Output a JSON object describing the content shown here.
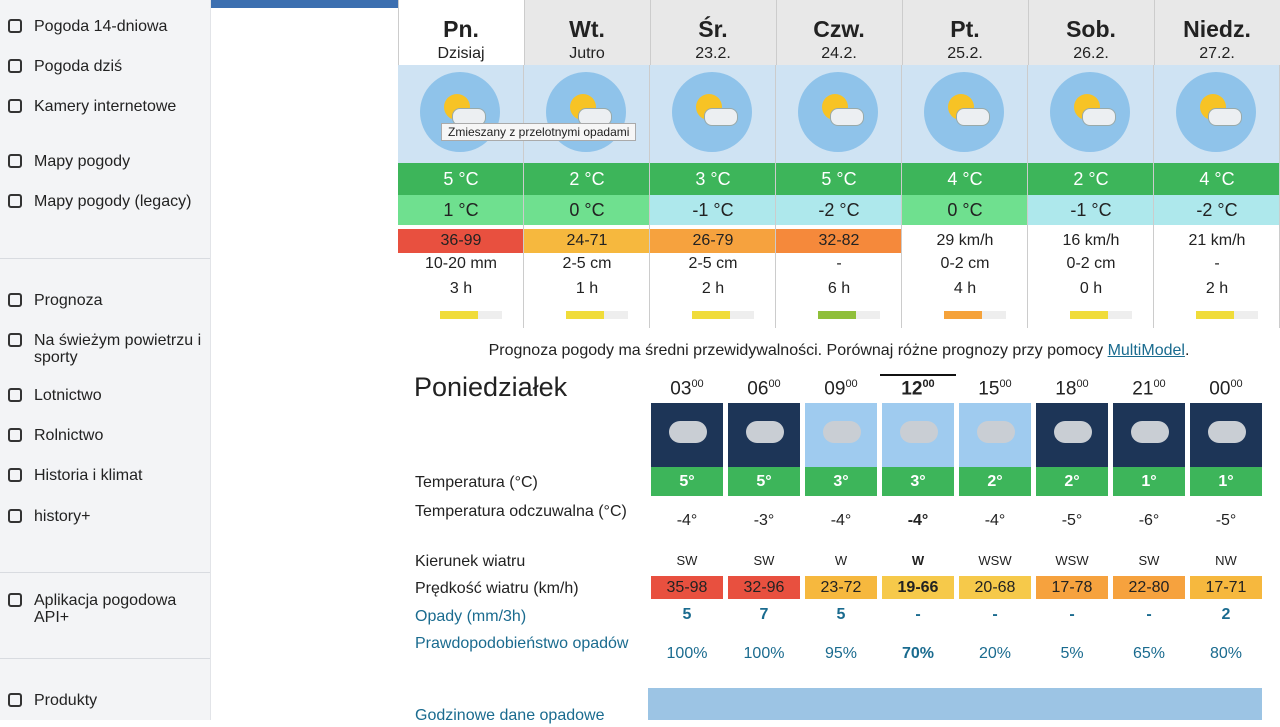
{
  "sidebar": {
    "items": [
      "Pogoda 14-dniowa",
      "Pogoda dziś",
      "Kamery internetowe",
      "Mapy pogody",
      "Mapy pogody (legacy)",
      "Prognoza",
      "Na świeżym powietrzu i sporty",
      "Lotnictwo",
      "Rolnictwo",
      "Historia i klimat",
      "history+",
      "Aplikacja pogodowa API+",
      "Produkty"
    ]
  },
  "days": [
    {
      "name": "Pn.",
      "date": "Dzisiaj",
      "tmax": "5 °C",
      "tmin": "1 °C",
      "tmin_color": "#6fe08f",
      "wind": "36-99",
      "wind_color": "#e8503f",
      "precip": "10-20 mm",
      "sun": "3 h",
      "pred_color": "#f0dc3a"
    },
    {
      "name": "Wt.",
      "date": "Jutro",
      "tmax": "2 °C",
      "tmin": "0 °C",
      "tmin_color": "#6fe08f",
      "wind": "24-71",
      "wind_color": "#f6b83e",
      "precip": "2-5 cm",
      "sun": "1 h",
      "pred_color": "#f0dc3a"
    },
    {
      "name": "Śr.",
      "date": "23.2.",
      "tmax": "3 °C",
      "tmin": "-1 °C",
      "tmin_color": "#aee8ec",
      "wind": "26-79",
      "wind_color": "#f6a23e",
      "precip": "2-5 cm",
      "sun": "2 h",
      "pred_color": "#f0dc3a"
    },
    {
      "name": "Czw.",
      "date": "24.2.",
      "tmax": "5 °C",
      "tmin": "-2 °C",
      "tmin_color": "#aee8ec",
      "wind": "32-82",
      "wind_color": "#f5893b",
      "precip": "-",
      "sun": "6 h",
      "pred_color": "#8fbf3a"
    },
    {
      "name": "Pt.",
      "date": "25.2.",
      "tmax": "4 °C",
      "tmin": "0 °C",
      "tmin_color": "#6fe08f",
      "wind": "29 km/h",
      "wind_color": "#ffffff",
      "precip": "0-2 cm",
      "sun": "4 h",
      "pred_color": "#f5a23a"
    },
    {
      "name": "Sob.",
      "date": "26.2.",
      "tmax": "2 °C",
      "tmin": "-1 °C",
      "tmin_color": "#aee8ec",
      "wind": "16 km/h",
      "wind_color": "#ffffff",
      "precip": "0-2 cm",
      "sun": "0 h",
      "pred_color": "#f0dc3a"
    },
    {
      "name": "Niedz.",
      "date": "27.2.",
      "tmax": "4 °C",
      "tmin": "-2 °C",
      "tmin_color": "#aee8ec",
      "wind": "21 km/h",
      "wind_color": "#ffffff",
      "precip": "-",
      "sun": "2 h",
      "pred_color": "#f0dc3a"
    }
  ],
  "tooltip": "Zmieszany z przelotnymi opadami",
  "note": {
    "text": "Prognoza pogody ma średni przewidywalności. Porównaj różne prognozy przy pomocy ",
    "link": "MultiModel",
    "end": "."
  },
  "hourly": {
    "title": "Poniedziałek",
    "labels": [
      "Temperatura (°C)",
      "Temperatura odczuwalna (°C)",
      "Kierunek wiatru",
      "Prędkość wiatru (km/h)",
      "Opady (mm/3h)",
      "Prawdopodobieństwo opadów",
      "Godzinowe dane opadowe"
    ],
    "hours": [
      {
        "h": "03",
        "m": "00",
        "sky": "night",
        "temp": "5°",
        "feel": "-4°",
        "dir": "SW",
        "speed": "35-98",
        "speed_color": "#e8503f",
        "precip": "5",
        "prob": "100%",
        "current": false
      },
      {
        "h": "06",
        "m": "00",
        "sky": "night",
        "temp": "5°",
        "feel": "-3°",
        "dir": "SW",
        "speed": "32-96",
        "speed_color": "#e8503f",
        "precip": "7",
        "prob": "100%",
        "current": false
      },
      {
        "h": "09",
        "m": "00",
        "sky": "day",
        "temp": "3°",
        "feel": "-4°",
        "dir": "W",
        "speed": "23-72",
        "speed_color": "#f6b83e",
        "precip": "5",
        "prob": "95%",
        "current": false
      },
      {
        "h": "12",
        "m": "00",
        "sky": "day",
        "temp": "3°",
        "feel": "-4°",
        "dir": "W",
        "speed": "19-66",
        "speed_color": "#f6c94a",
        "precip": "-",
        "prob": "70%",
        "current": true
      },
      {
        "h": "15",
        "m": "00",
        "sky": "day",
        "temp": "2°",
        "feel": "-4°",
        "dir": "WSW",
        "speed": "20-68",
        "speed_color": "#f6c94a",
        "precip": "-",
        "prob": "20%",
        "current": false
      },
      {
        "h": "18",
        "m": "00",
        "sky": "night",
        "temp": "2°",
        "feel": "-5°",
        "dir": "WSW",
        "speed": "17-78",
        "speed_color": "#f6a23e",
        "precip": "-",
        "prob": "5%",
        "current": false
      },
      {
        "h": "21",
        "m": "00",
        "sky": "night",
        "temp": "1°",
        "feel": "-6°",
        "dir": "SW",
        "speed": "22-80",
        "speed_color": "#f6a23e",
        "precip": "-",
        "prob": "65%",
        "current": false
      },
      {
        "h": "00",
        "m": "00",
        "sky": "night",
        "temp": "1°",
        "feel": "-5°",
        "dir": "NW",
        "speed": "17-71",
        "speed_color": "#f6b83e",
        "precip": "2",
        "prob": "80%",
        "current": false
      }
    ]
  }
}
